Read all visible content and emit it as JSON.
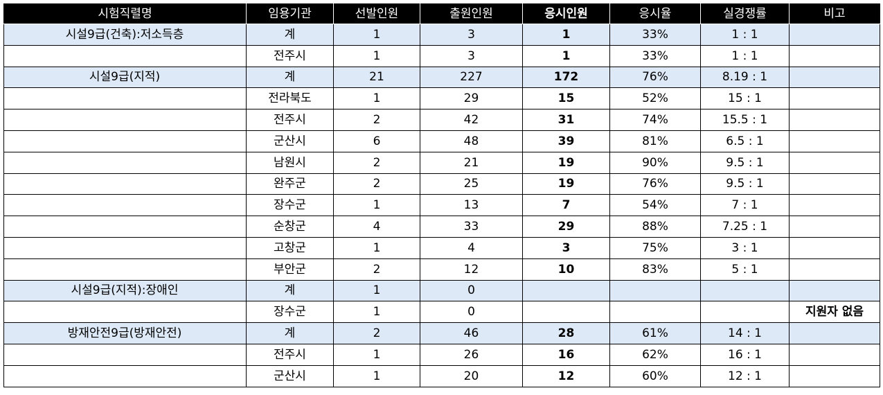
{
  "table": {
    "headers": [
      {
        "label": "시험직렬명",
        "bold": false
      },
      {
        "label": "임용기관",
        "bold": false
      },
      {
        "label": "선발인원",
        "bold": false
      },
      {
        "label": "출원인원",
        "bold": false
      },
      {
        "label": "응시인원",
        "bold": true
      },
      {
        "label": "응시율",
        "bold": false
      },
      {
        "label": "실경쟁률",
        "bold": false
      },
      {
        "label": "비고",
        "bold": false
      }
    ],
    "rows": [
      {
        "total": true,
        "job": "시설9급(건축):저소득층",
        "agency": "계",
        "selected": "1",
        "applied": "3",
        "took": "1",
        "rate": "33%",
        "ratio": "1 : 1",
        "note": ""
      },
      {
        "total": false,
        "job": "",
        "agency": "전주시",
        "selected": "1",
        "applied": "3",
        "took": "1",
        "rate": "33%",
        "ratio": "1 : 1",
        "note": ""
      },
      {
        "total": true,
        "job": "시설9급(지적)",
        "agency": "계",
        "selected": "21",
        "applied": "227",
        "took": "172",
        "rate": "76%",
        "ratio": "8.19 : 1",
        "note": ""
      },
      {
        "total": false,
        "job": "",
        "agency": "전라북도",
        "selected": "1",
        "applied": "29",
        "took": "15",
        "rate": "52%",
        "ratio": "15 : 1",
        "note": ""
      },
      {
        "total": false,
        "job": "",
        "agency": "전주시",
        "selected": "2",
        "applied": "42",
        "took": "31",
        "rate": "74%",
        "ratio": "15.5 : 1",
        "note": ""
      },
      {
        "total": false,
        "job": "",
        "agency": "군산시",
        "selected": "6",
        "applied": "48",
        "took": "39",
        "rate": "81%",
        "ratio": "6.5 : 1",
        "note": ""
      },
      {
        "total": false,
        "job": "",
        "agency": "남원시",
        "selected": "2",
        "applied": "21",
        "took": "19",
        "rate": "90%",
        "ratio": "9.5 : 1",
        "note": ""
      },
      {
        "total": false,
        "job": "",
        "agency": "완주군",
        "selected": "2",
        "applied": "25",
        "took": "19",
        "rate": "76%",
        "ratio": "9.5 : 1",
        "note": ""
      },
      {
        "total": false,
        "job": "",
        "agency": "장수군",
        "selected": "1",
        "applied": "13",
        "took": "7",
        "rate": "54%",
        "ratio": "7 : 1",
        "note": ""
      },
      {
        "total": false,
        "job": "",
        "agency": "순창군",
        "selected": "4",
        "applied": "33",
        "took": "29",
        "rate": "88%",
        "ratio": "7.25 : 1",
        "note": ""
      },
      {
        "total": false,
        "job": "",
        "agency": "고창군",
        "selected": "1",
        "applied": "4",
        "took": "3",
        "rate": "75%",
        "ratio": "3 : 1",
        "note": ""
      },
      {
        "total": false,
        "job": "",
        "agency": "부안군",
        "selected": "2",
        "applied": "12",
        "took": "10",
        "rate": "83%",
        "ratio": "5 : 1",
        "note": ""
      },
      {
        "total": true,
        "job": "시설9급(지적):장애인",
        "agency": "계",
        "selected": "1",
        "applied": "0",
        "took": "",
        "rate": "",
        "ratio": "",
        "note": ""
      },
      {
        "total": false,
        "job": "",
        "agency": "장수군",
        "selected": "1",
        "applied": "0",
        "took": "",
        "rate": "",
        "ratio": "",
        "note": "지원자 없음"
      },
      {
        "total": true,
        "job": "방재안전9급(방재안전)",
        "agency": "계",
        "selected": "2",
        "applied": "46",
        "took": "28",
        "rate": "61%",
        "ratio": "14 : 1",
        "note": ""
      },
      {
        "total": false,
        "job": "",
        "agency": "전주시",
        "selected": "1",
        "applied": "26",
        "took": "16",
        "rate": "62%",
        "ratio": "16 : 1",
        "note": ""
      },
      {
        "total": false,
        "job": "",
        "agency": "군산시",
        "selected": "1",
        "applied": "20",
        "took": "12",
        "rate": "60%",
        "ratio": "12 : 1",
        "note": ""
      }
    ]
  },
  "colors": {
    "header_bg": "#000000",
    "header_text": "#ffffff",
    "total_row_bg": "#dde9f6",
    "border": "#000000"
  }
}
